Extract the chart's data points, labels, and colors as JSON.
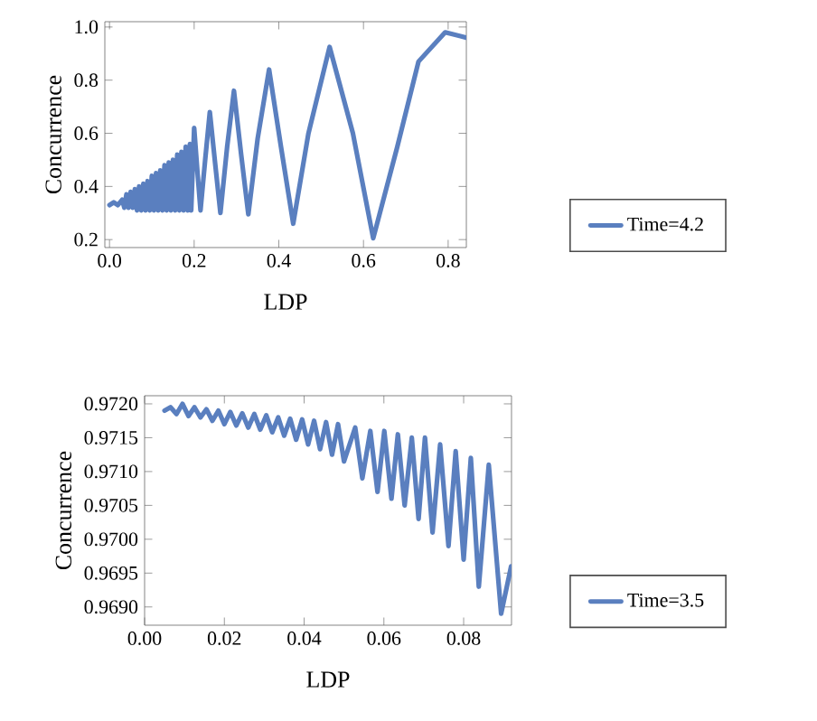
{
  "chart_data": [
    {
      "type": "line",
      "xlabel": "LDP",
      "ylabel": "Concurrence",
      "legend": "right",
      "line_style": "solid",
      "xlim": [
        -0.011,
        0.843
      ],
      "ylim": [
        0.17,
        1.02
      ],
      "xticks": [
        {
          "value": 0,
          "label": "0.0"
        },
        {
          "value": 0.2,
          "label": "0.2"
        },
        {
          "value": 0.4,
          "label": "0.4"
        },
        {
          "value": 0.6,
          "label": "0.6"
        },
        {
          "value": 0.8,
          "label": "0.8"
        }
      ],
      "yticks": [
        {
          "value": 0.2,
          "label": "0.2"
        },
        {
          "value": 0.4,
          "label": "0.4"
        },
        {
          "value": 0.6,
          "label": "0.6"
        },
        {
          "value": 0.8,
          "label": "0.8"
        },
        {
          "value": 1.0,
          "label": "1.0"
        }
      ],
      "series": [
        {
          "name": "Time=4.2",
          "color": "#5a7fbf",
          "x": [
            0.0,
            0.01,
            0.02,
            0.03,
            0.035,
            0.04,
            0.045,
            0.05,
            0.055,
            0.06,
            0.065,
            0.07,
            0.075,
            0.08,
            0.085,
            0.09,
            0.095,
            0.1,
            0.105,
            0.11,
            0.115,
            0.12,
            0.125,
            0.13,
            0.135,
            0.14,
            0.145,
            0.15,
            0.155,
            0.16,
            0.165,
            0.17,
            0.175,
            0.18,
            0.185,
            0.19,
            0.193,
            0.2,
            0.208,
            0.215,
            0.226,
            0.237,
            0.25,
            0.262,
            0.278,
            0.294,
            0.311,
            0.328,
            0.35,
            0.377,
            0.405,
            0.434,
            0.47,
            0.52,
            0.575,
            0.623,
            0.68,
            0.73,
            0.793,
            0.843
          ],
          "values": [
            0.33,
            0.34,
            0.33,
            0.35,
            0.32,
            0.37,
            0.32,
            0.38,
            0.32,
            0.39,
            0.31,
            0.4,
            0.31,
            0.41,
            0.31,
            0.42,
            0.31,
            0.44,
            0.31,
            0.45,
            0.31,
            0.46,
            0.31,
            0.48,
            0.31,
            0.49,
            0.31,
            0.5,
            0.31,
            0.52,
            0.31,
            0.53,
            0.31,
            0.55,
            0.31,
            0.56,
            0.31,
            0.62,
            0.45,
            0.31,
            0.5,
            0.68,
            0.48,
            0.3,
            0.55,
            0.76,
            0.52,
            0.295,
            0.58,
            0.84,
            0.55,
            0.26,
            0.6,
            0.925,
            0.6,
            0.205,
            0.55,
            0.87,
            0.98,
            0.96
          ]
        }
      ]
    },
    {
      "type": "line",
      "xlabel": "LDP",
      "ylabel": "Concurrence",
      "legend": "right",
      "line_style": "solid",
      "xlim": [
        0.0,
        0.092
      ],
      "ylim": [
        0.96873,
        0.97212
      ],
      "xticks": [
        {
          "value": 0,
          "label": "0.00"
        },
        {
          "value": 0.02,
          "label": "0.02"
        },
        {
          "value": 0.04,
          "label": "0.04"
        },
        {
          "value": 0.06,
          "label": "0.06"
        },
        {
          "value": 0.08,
          "label": "0.08"
        }
      ],
      "yticks": [
        {
          "value": 0.969,
          "label": "0.9690"
        },
        {
          "value": 0.9695,
          "label": "0.9695"
        },
        {
          "value": 0.97,
          "label": "0.9700"
        },
        {
          "value": 0.9705,
          "label": "0.9705"
        },
        {
          "value": 0.971,
          "label": "0.9710"
        },
        {
          "value": 0.9715,
          "label": "0.9715"
        },
        {
          "value": 0.972,
          "label": "0.9720"
        }
      ],
      "series": [
        {
          "name": "Time=3.5",
          "color": "#5a7fbf",
          "x": [
            0.005,
            0.0065,
            0.008,
            0.0095,
            0.011,
            0.0125,
            0.014,
            0.0155,
            0.017,
            0.0185,
            0.02,
            0.0215,
            0.023,
            0.0245,
            0.026,
            0.0275,
            0.029,
            0.0305,
            0.032,
            0.0335,
            0.035,
            0.0365,
            0.038,
            0.0395,
            0.041,
            0.0425,
            0.044,
            0.0455,
            0.047,
            0.0485,
            0.05,
            0.0528,
            0.0546,
            0.0566,
            0.0584,
            0.0601,
            0.0619,
            0.0635,
            0.0652,
            0.067,
            0.0687,
            0.0703,
            0.0722,
            0.0741,
            0.0762,
            0.078,
            0.08,
            0.0818,
            0.0838,
            0.0863,
            0.0894,
            0.0919
          ],
          "values": [
            0.9719,
            0.97195,
            0.97185,
            0.972,
            0.97182,
            0.97195,
            0.9718,
            0.97192,
            0.97175,
            0.9719,
            0.9717,
            0.97188,
            0.97168,
            0.97186,
            0.97165,
            0.97185,
            0.97162,
            0.97183,
            0.97158,
            0.9718,
            0.97153,
            0.97178,
            0.97147,
            0.97177,
            0.9714,
            0.97175,
            0.97133,
            0.97173,
            0.97125,
            0.9717,
            0.97115,
            0.97165,
            0.9709,
            0.9716,
            0.9707,
            0.9716,
            0.9706,
            0.97155,
            0.9705,
            0.9715,
            0.9703,
            0.9715,
            0.9701,
            0.9714,
            0.9699,
            0.9713,
            0.9697,
            0.9712,
            0.9693,
            0.9711,
            0.9689,
            0.9696
          ]
        }
      ]
    }
  ]
}
